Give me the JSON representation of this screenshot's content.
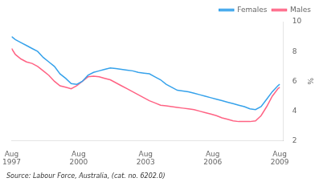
{
  "chart_data": {
    "type": "line",
    "ylabel": "%",
    "annotations": [
      "Source: Labour Force, Australia, (cat. no. 6202.0)"
    ],
    "x": [
      1997.583,
      1997.75,
      1998.0,
      1998.25,
      1998.5,
      1998.75,
      1999.0,
      1999.25,
      1999.5,
      1999.75,
      2000.0,
      2000.25,
      2000.5,
      2000.75,
      2001.0,
      2001.25,
      2001.5,
      2001.75,
      2002.0,
      2002.25,
      2002.5,
      2002.75,
      2003.0,
      2003.25,
      2003.5,
      2003.75,
      2004.0,
      2004.25,
      2004.5,
      2004.75,
      2005.0,
      2005.25,
      2005.5,
      2005.75,
      2006.0,
      2006.25,
      2006.5,
      2006.75,
      2007.0,
      2007.25,
      2007.5,
      2007.75,
      2008.0,
      2008.25,
      2008.5,
      2008.75,
      2009.0,
      2009.25,
      2009.5,
      2009.583
    ],
    "series": [
      {
        "name": "Females",
        "values": [
          9.0,
          8.8,
          8.6,
          8.4,
          8.2,
          8.0,
          7.6,
          7.3,
          7.0,
          6.5,
          6.2,
          5.85,
          5.8,
          6.0,
          6.4,
          6.6,
          6.7,
          6.8,
          6.9,
          6.85,
          6.8,
          6.75,
          6.7,
          6.6,
          6.55,
          6.5,
          6.3,
          6.1,
          5.8,
          5.6,
          5.4,
          5.35,
          5.3,
          5.2,
          5.1,
          5.0,
          4.9,
          4.8,
          4.7,
          4.6,
          4.5,
          4.4,
          4.3,
          4.15,
          4.1,
          4.3,
          4.8,
          5.3,
          5.7,
          5.8
        ]
      },
      {
        "name": "Males",
        "values": [
          8.2,
          7.8,
          7.5,
          7.3,
          7.2,
          7.0,
          6.7,
          6.4,
          6.0,
          5.7,
          5.6,
          5.5,
          5.7,
          6.0,
          6.3,
          6.35,
          6.3,
          6.2,
          6.1,
          5.9,
          5.7,
          5.5,
          5.3,
          5.1,
          4.9,
          4.7,
          4.55,
          4.4,
          4.35,
          4.3,
          4.25,
          4.2,
          4.15,
          4.1,
          4.0,
          3.9,
          3.8,
          3.7,
          3.55,
          3.45,
          3.35,
          3.3,
          3.3,
          3.3,
          3.35,
          3.7,
          4.3,
          5.0,
          5.5,
          5.6
        ]
      }
    ],
    "xlim": [
      1997.583,
      2009.75
    ],
    "xticks": [
      {
        "value": 1997.5833333333333,
        "label": "Aug\n1997"
      },
      {
        "value": 2000.5833333333333,
        "label": "Aug\n2000"
      },
      {
        "value": 2003.5833333333333,
        "label": "Aug\n2003"
      },
      {
        "value": 2006.5833333333333,
        "label": "Aug\n2006"
      },
      {
        "value": 2009.5833333333333,
        "label": "Aug\n2009"
      }
    ],
    "ylim": [
      2,
      10
    ],
    "yticks": [
      2,
      4,
      6,
      8,
      10
    ],
    "grid": false,
    "legend": "upper right"
  }
}
